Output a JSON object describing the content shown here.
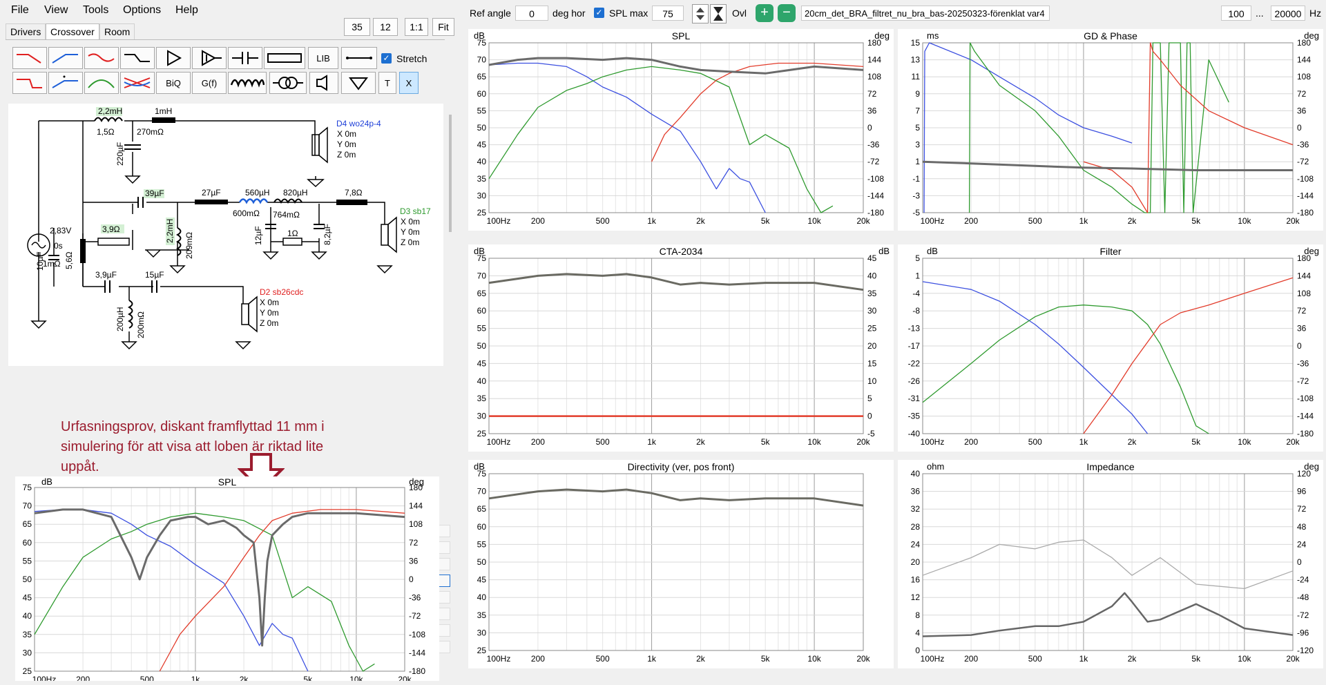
{
  "menu": {
    "file": "File",
    "view": "View",
    "tools": "Tools",
    "options": "Options",
    "help": "Help"
  },
  "tabs": {
    "drivers": "Drivers",
    "crossover": "Crossover",
    "room": "Room"
  },
  "zoom_buttons": {
    "b35": "35",
    "b12": "12",
    "b11": "1:1",
    "fit": "Fit"
  },
  "toolbar": {
    "lib": "LIB",
    "biq": "BiQ",
    "gf": "G(f)",
    "t": "T",
    "x": "X",
    "stretch": "Stretch"
  },
  "top_toolbar": {
    "ref_angle_label": "Ref angle",
    "ref_angle_value": "0",
    "deg_hor": "deg hor",
    "spl_max_label": "SPL max",
    "spl_max_value": "75",
    "ovl": "Ovl",
    "filename": "20cm_det_BRA_filtret_nu_bra_bas-20250323-förenklat var4",
    "freq_min": "100",
    "ellipsis": "...",
    "freq_max": "20000",
    "hz": "Hz"
  },
  "schematic": {
    "source_v": "2,83V",
    "source_t": "0s",
    "source_r": "1mΩ",
    "l1": "2,2mH",
    "l1r": "1,5Ω",
    "l2": "1mH",
    "c1": "220µF",
    "r_c1": "270mΩ",
    "d4": "D4 wo24p-4",
    "d4x": "X 0m",
    "d4y": "Y 0m",
    "d4z": "Z 0m",
    "c2": "39µF",
    "r1": "3,9Ω",
    "l3": "2,2mH",
    "r_l3": "209mΩ",
    "c3": "27µF",
    "l4": "560µH",
    "r_l4": "600mΩ",
    "l5": "820µH",
    "r_l5": "764mΩ",
    "c4": "12µF",
    "r2": "1Ω",
    "c5": "8,2µF",
    "r3": "7,8Ω",
    "d3": "D3 sb17",
    "d3x": "X 0m",
    "d3y": "Y 0m",
    "d3z": "Z 0m",
    "c6": "10µF",
    "r4": "5,6Ω",
    "c7": "3,9µF",
    "c8": "15µF",
    "l6": "200µH",
    "r_l6": "200mΩ",
    "d2": "D2 sb26cdc",
    "d2x": "X 0m",
    "d2y": "Y 0m",
    "d2z": "Z 0m"
  },
  "annotation": {
    "line1": "Urfasningsprov, diskant framflyttad 11 mm i",
    "line2": "simulering för att visa att loben är riktad lite",
    "line3": "uppåt."
  },
  "colors": {
    "woofer": "#3b4fe0",
    "mid": "#2e9a2e",
    "tweeter": "#e23b2a",
    "sum": "#6a6a6a",
    "cta": "#6a6a62",
    "dir": "#d0502a"
  },
  "chart_data": [
    {
      "id": "spl",
      "type": "line",
      "title": "SPL",
      "ylabel": "dB",
      "y2label": "deg",
      "ylim": [
        25,
        75
      ],
      "y2lim": [
        -180,
        180
      ],
      "x_ticks": [
        "100Hz",
        "200",
        "500",
        "1k",
        "2k",
        "5k",
        "10k",
        "20k"
      ],
      "series": [
        {
          "name": "woofer",
          "x": [
            100,
            150,
            200,
            300,
            400,
            500,
            700,
            1000,
            1500,
            2000,
            2500,
            3000,
            3500,
            4000,
            5000
          ],
          "values": [
            68.5,
            69,
            69,
            68,
            65,
            62,
            59,
            54,
            49,
            40,
            32,
            38,
            35,
            34,
            25
          ]
        },
        {
          "name": "mid",
          "x": [
            100,
            150,
            200,
            300,
            400,
            500,
            700,
            1000,
            1500,
            2000,
            3000,
            4000,
            5000,
            7000,
            9000,
            11000,
            13000
          ],
          "values": [
            35,
            48,
            56,
            61,
            63,
            65,
            67,
            68,
            67,
            66,
            62,
            45,
            48,
            44,
            32,
            25,
            27
          ]
        },
        {
          "name": "tweeter",
          "x": [
            1000,
            1200,
            1500,
            2000,
            2500,
            3000,
            4000,
            6000,
            10000,
            20000
          ],
          "values": [
            40,
            48,
            53,
            60,
            64,
            66,
            68,
            69,
            69,
            68
          ]
        },
        {
          "name": "sum",
          "x": [
            100,
            150,
            200,
            300,
            500,
            700,
            1000,
            1500,
            2000,
            3000,
            5000,
            10000,
            20000
          ],
          "values": [
            68.5,
            70,
            70.5,
            70.5,
            70,
            70.5,
            70,
            68,
            67,
            66.5,
            66,
            68,
            67
          ]
        }
      ]
    },
    {
      "id": "gd",
      "type": "line",
      "title": "GD & Phase",
      "ylabel": "ms",
      "y2label": "deg",
      "ylim": [
        -5,
        15
      ],
      "y2lim": [
        -180,
        180
      ],
      "x_ticks": [
        "100Hz",
        "200",
        "500",
        "1k",
        "2k",
        "5k",
        "10k",
        "20k"
      ],
      "series": [
        {
          "name": "woofer",
          "x": [
            102,
            103,
            110,
            200,
            300,
            500,
            700,
            1000,
            1500,
            2000
          ],
          "values": [
            -5,
            14,
            15,
            13,
            11,
            8.5,
            6.5,
            5,
            4,
            3.2
          ]
        },
        {
          "name": "mid",
          "x": [
            195,
            197,
            210,
            300,
            500,
            700,
            1000,
            1500,
            2000,
            2400,
            2600,
            2700,
            3000,
            3200,
            3400,
            4000,
            4200,
            4400,
            4600,
            4800,
            6000,
            8000
          ],
          "values": [
            -5,
            15,
            14,
            10,
            7,
            4,
            0,
            -2,
            -4,
            -5,
            -5,
            15,
            15,
            -5,
            15,
            15,
            -5,
            15,
            15,
            -5,
            13,
            8
          ]
        },
        {
          "name": "tweeter",
          "x": [
            1000,
            1500,
            2000,
            2500,
            2600,
            2700,
            3000,
            4000,
            6000,
            10000,
            20000
          ],
          "values": [
            1,
            0,
            -2,
            -5,
            15,
            14,
            13,
            10,
            7,
            5,
            3
          ]
        },
        {
          "name": "sum",
          "x": [
            100,
            200,
            500,
            1000,
            2000,
            5000,
            10000,
            20000
          ],
          "values": [
            1,
            0.8,
            0.5,
            0.3,
            0.2,
            0,
            0,
            0
          ]
        }
      ]
    },
    {
      "id": "cta",
      "type": "line",
      "title": "CTA-2034",
      "ylabel": "dB",
      "y2label": "dB",
      "ylim": [
        25,
        75
      ],
      "y2lim": [
        -5,
        45
      ],
      "x_ticks": [
        "100Hz",
        "200",
        "500",
        "1k",
        "2k",
        "5k",
        "10k",
        "20k"
      ],
      "series": [
        {
          "name": "onaxis",
          "x": [
            100,
            200,
            300,
            500,
            700,
            1000,
            1500,
            2000,
            3000,
            5000,
            10000,
            20000
          ],
          "values": [
            68,
            70,
            70.5,
            70,
            70.5,
            69.5,
            67.5,
            68,
            67.5,
            68,
            68,
            66
          ]
        },
        {
          "name": "di",
          "x": [
            100,
            20000
          ],
          "values": [
            30,
            30
          ]
        }
      ]
    },
    {
      "id": "filter",
      "type": "line",
      "title": "Filter",
      "ylabel": "dB",
      "y2label": "deg",
      "ylim": [
        -40,
        5
      ],
      "y2lim": [
        -180,
        180
      ],
      "x_ticks": [
        "100Hz",
        "200",
        "500",
        "1k",
        "2k",
        "5k",
        "10k",
        "20k"
      ],
      "series": [
        {
          "name": "woofer",
          "x": [
            100,
            200,
            300,
            500,
            700,
            1000,
            1500,
            2000,
            2500
          ],
          "values": [
            -1,
            -3,
            -6,
            -12,
            -17,
            -23,
            -30,
            -35,
            -40
          ]
        },
        {
          "name": "mid",
          "x": [
            100,
            200,
            300,
            500,
            700,
            1000,
            1500,
            2000,
            2500,
            3000,
            4000,
            5000,
            6000
          ],
          "values": [
            -32,
            -22,
            -16,
            -10,
            -7.5,
            -7,
            -7.5,
            -8.5,
            -12,
            -17,
            -28,
            -38,
            -40
          ]
        },
        {
          "name": "tweeter",
          "x": [
            1000,
            1500,
            2000,
            3000,
            4000,
            6000,
            10000,
            20000
          ],
          "values": [
            -40,
            -30,
            -22,
            -12,
            -9,
            -7,
            -4,
            0
          ]
        }
      ]
    },
    {
      "id": "dir",
      "type": "line",
      "title": "Directivity (ver, pos front)",
      "ylabel": "dB",
      "ylim": [
        25,
        75
      ],
      "x_ticks": [
        "100Hz",
        "200",
        "500",
        "1k",
        "2k",
        "5k",
        "10k",
        "20k"
      ],
      "series": [
        {
          "name": "onaxis",
          "x": [
            100,
            200,
            300,
            500,
            700,
            1000,
            1500,
            2000,
            3000,
            5000,
            10000,
            20000
          ],
          "values": [
            68,
            70,
            70.5,
            70,
            70.5,
            69.5,
            67.5,
            68,
            67.5,
            68,
            68,
            66
          ]
        }
      ]
    },
    {
      "id": "imp",
      "type": "line",
      "title": "Impedance",
      "ylabel": "ohm",
      "y2label": "deg",
      "ylim": [
        0,
        40
      ],
      "y2lim": [
        -120,
        120
      ],
      "x_ticks": [
        "100Hz",
        "200",
        "500",
        "1k",
        "2k",
        "5k",
        "10k",
        "20k"
      ],
      "series": [
        {
          "name": "phase",
          "x": [
            100,
            200,
            300,
            500,
            700,
            1000,
            1500,
            2000,
            3000,
            5000,
            10000,
            20000
          ],
          "values": [
            17,
            21,
            24,
            23,
            24.5,
            25,
            21,
            17,
            21,
            15,
            14,
            18
          ]
        },
        {
          "name": "magnitude",
          "x": [
            100,
            200,
            300,
            500,
            700,
            1000,
            1500,
            1800,
            2000,
            2500,
            3000,
            5000,
            7000,
            10000,
            20000
          ],
          "values": [
            3.2,
            3.5,
            4.5,
            5.5,
            5.5,
            6.5,
            10,
            13,
            11,
            6.5,
            7,
            10.5,
            8,
            5,
            3.5
          ]
        }
      ]
    },
    {
      "id": "spl2",
      "type": "line",
      "title": "SPL",
      "ylabel": "dB",
      "y2label": "deg",
      "ylim": [
        25,
        75
      ],
      "y2lim": [
        -180,
        180
      ],
      "x_ticks": [
        "100Hz",
        "200",
        "500",
        "1k",
        "2k",
        "5k",
        "10k",
        "20k"
      ],
      "series": [
        {
          "name": "woofer",
          "x": [
            100,
            150,
            200,
            300,
            400,
            500,
            700,
            1000,
            1500,
            2000,
            2500,
            3000,
            3500,
            4000,
            5000
          ],
          "values": [
            68.5,
            69,
            69,
            68,
            65,
            62,
            59,
            54,
            49,
            40,
            32,
            38,
            35,
            34,
            25
          ]
        },
        {
          "name": "mid",
          "x": [
            100,
            150,
            200,
            300,
            400,
            500,
            700,
            1000,
            1500,
            2000,
            3000,
            4000,
            5000,
            7000,
            9000,
            11000,
            13000
          ],
          "values": [
            35,
            48,
            56,
            61,
            63,
            65,
            67,
            68,
            67,
            66,
            62,
            45,
            48,
            44,
            32,
            25,
            27
          ]
        },
        {
          "name": "tweeter",
          "x": [
            600,
            800,
            1000,
            1500,
            2000,
            2500,
            3000,
            4000,
            6000,
            10000,
            20000
          ],
          "values": [
            25,
            35,
            40,
            48,
            56,
            62,
            66,
            68,
            69,
            69,
            68
          ]
        },
        {
          "name": "sum",
          "x": [
            100,
            150,
            200,
            300,
            400,
            450,
            500,
            600,
            700,
            900,
            1000,
            1200,
            1500,
            1800,
            2000,
            2300,
            2500,
            2600,
            2700,
            2800,
            3000,
            3500,
            4000,
            5000,
            7000,
            10000,
            20000
          ],
          "values": [
            68,
            69,
            69,
            67,
            56,
            50,
            56,
            62,
            66,
            67,
            67,
            65,
            66,
            64,
            62,
            60,
            45,
            32,
            45,
            55,
            62,
            65,
            67,
            68,
            68,
            68,
            67
          ]
        }
      ]
    }
  ]
}
